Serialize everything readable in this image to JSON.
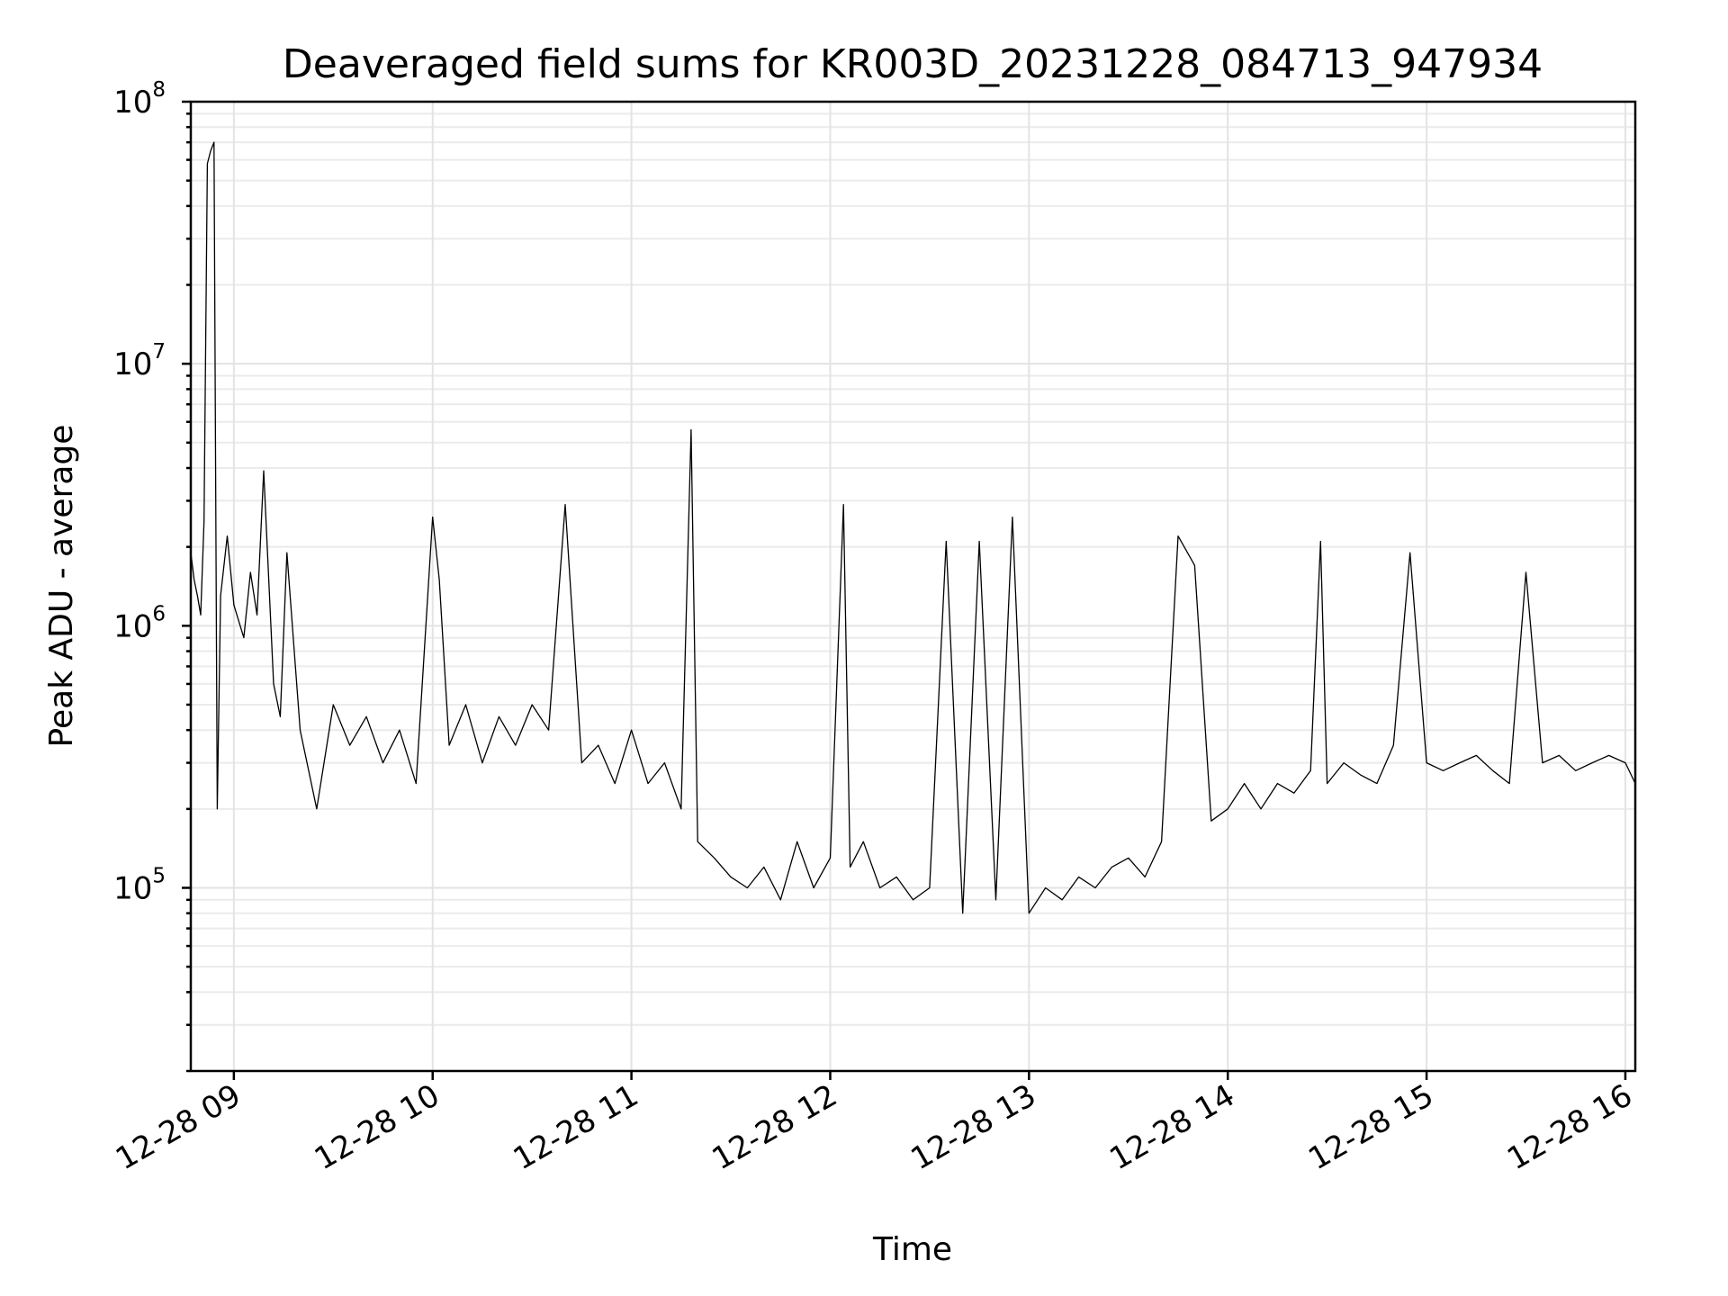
{
  "chart_data": {
    "type": "line",
    "title": "Deaveraged field sums for KR003D_20231228_084713_947934",
    "xlabel": "Time",
    "ylabel": "Peak ADU - average",
    "yscale": "log",
    "xlim": [
      "2023-12-28 08:47",
      "2023-12-28 16:03"
    ],
    "ylim": [
      20000,
      100000000
    ],
    "grid": true,
    "x_ticks": [
      {
        "value": "2023-12-28 09:00",
        "label": "12-28 09"
      },
      {
        "value": "2023-12-28 10:00",
        "label": "12-28 10"
      },
      {
        "value": "2023-12-28 11:00",
        "label": "12-28 11"
      },
      {
        "value": "2023-12-28 12:00",
        "label": "12-28 12"
      },
      {
        "value": "2023-12-28 13:00",
        "label": "12-28 13"
      },
      {
        "value": "2023-12-28 14:00",
        "label": "12-28 14"
      },
      {
        "value": "2023-12-28 15:00",
        "label": "12-28 15"
      },
      {
        "value": "2023-12-28 16:00",
        "label": "12-28 16"
      }
    ],
    "y_ticks": [
      {
        "value": 100000,
        "base": "10",
        "exp": "5"
      },
      {
        "value": 1000000,
        "base": "10",
        "exp": "6"
      },
      {
        "value": 10000000,
        "base": "10",
        "exp": "7"
      },
      {
        "value": 100000000,
        "base": "10",
        "exp": "8"
      }
    ],
    "series": [
      {
        "color": "#000000",
        "points": [
          [
            "2023-12-28 08:47",
            1900000
          ],
          [
            "2023-12-28 08:48",
            1500000
          ],
          [
            "2023-12-28 08:49",
            1300000
          ],
          [
            "2023-12-28 08:50",
            1100000
          ],
          [
            "2023-12-28 08:51",
            2500000
          ],
          [
            "2023-12-28 08:52",
            58000000
          ],
          [
            "2023-12-28 08:53",
            65000000
          ],
          [
            "2023-12-28 08:54",
            70000000
          ],
          [
            "2023-12-28 08:55",
            200000
          ],
          [
            "2023-12-28 08:56",
            1300000
          ],
          [
            "2023-12-28 08:58",
            2200000
          ],
          [
            "2023-12-28 09:00",
            1200000
          ],
          [
            "2023-12-28 09:03",
            900000
          ],
          [
            "2023-12-28 09:05",
            1600000
          ],
          [
            "2023-12-28 09:07",
            1100000
          ],
          [
            "2023-12-28 09:09",
            3900000
          ],
          [
            "2023-12-28 09:12",
            600000
          ],
          [
            "2023-12-28 09:14",
            450000
          ],
          [
            "2023-12-28 09:16",
            1900000
          ],
          [
            "2023-12-28 09:20",
            400000
          ],
          [
            "2023-12-28 09:25",
            200000
          ],
          [
            "2023-12-28 09:30",
            500000
          ],
          [
            "2023-12-28 09:35",
            350000
          ],
          [
            "2023-12-28 09:40",
            450000
          ],
          [
            "2023-12-28 09:45",
            300000
          ],
          [
            "2023-12-28 09:50",
            400000
          ],
          [
            "2023-12-28 09:55",
            250000
          ],
          [
            "2023-12-28 10:00",
            2600000
          ],
          [
            "2023-12-28 10:02",
            1500000
          ],
          [
            "2023-12-28 10:05",
            350000
          ],
          [
            "2023-12-28 10:10",
            500000
          ],
          [
            "2023-12-28 10:15",
            300000
          ],
          [
            "2023-12-28 10:20",
            450000
          ],
          [
            "2023-12-28 10:25",
            350000
          ],
          [
            "2023-12-28 10:30",
            500000
          ],
          [
            "2023-12-28 10:35",
            400000
          ],
          [
            "2023-12-28 10:40",
            2900000
          ],
          [
            "2023-12-28 10:45",
            300000
          ],
          [
            "2023-12-28 10:50",
            350000
          ],
          [
            "2023-12-28 10:55",
            250000
          ],
          [
            "2023-12-28 11:00",
            400000
          ],
          [
            "2023-12-28 11:05",
            250000
          ],
          [
            "2023-12-28 11:10",
            300000
          ],
          [
            "2023-12-28 11:15",
            200000
          ],
          [
            "2023-12-28 11:18",
            5600000
          ],
          [
            "2023-12-28 11:20",
            150000
          ],
          [
            "2023-12-28 11:25",
            130000
          ],
          [
            "2023-12-28 11:30",
            110000
          ],
          [
            "2023-12-28 11:35",
            100000
          ],
          [
            "2023-12-28 11:40",
            120000
          ],
          [
            "2023-12-28 11:45",
            90000
          ],
          [
            "2023-12-28 11:50",
            150000
          ],
          [
            "2023-12-28 11:55",
            100000
          ],
          [
            "2023-12-28 12:00",
            130000
          ],
          [
            "2023-12-28 12:04",
            2900000
          ],
          [
            "2023-12-28 12:06",
            120000
          ],
          [
            "2023-12-28 12:10",
            150000
          ],
          [
            "2023-12-28 12:15",
            100000
          ],
          [
            "2023-12-28 12:20",
            110000
          ],
          [
            "2023-12-28 12:25",
            90000
          ],
          [
            "2023-12-28 12:30",
            100000
          ],
          [
            "2023-12-28 12:35",
            2100000
          ],
          [
            "2023-12-28 12:40",
            80000
          ],
          [
            "2023-12-28 12:45",
            2100000
          ],
          [
            "2023-12-28 12:50",
            90000
          ],
          [
            "2023-12-28 12:55",
            2600000
          ],
          [
            "2023-12-28 13:00",
            80000
          ],
          [
            "2023-12-28 13:05",
            100000
          ],
          [
            "2023-12-28 13:10",
            90000
          ],
          [
            "2023-12-28 13:15",
            110000
          ],
          [
            "2023-12-28 13:20",
            100000
          ],
          [
            "2023-12-28 13:25",
            120000
          ],
          [
            "2023-12-28 13:30",
            130000
          ],
          [
            "2023-12-28 13:35",
            110000
          ],
          [
            "2023-12-28 13:40",
            150000
          ],
          [
            "2023-12-28 13:45",
            2200000
          ],
          [
            "2023-12-28 13:50",
            1700000
          ],
          [
            "2023-12-28 13:55",
            180000
          ],
          [
            "2023-12-28 14:00",
            200000
          ],
          [
            "2023-12-28 14:05",
            250000
          ],
          [
            "2023-12-28 14:10",
            200000
          ],
          [
            "2023-12-28 14:15",
            250000
          ],
          [
            "2023-12-28 14:20",
            230000
          ],
          [
            "2023-12-28 14:25",
            280000
          ],
          [
            "2023-12-28 14:28",
            2100000
          ],
          [
            "2023-12-28 14:30",
            250000
          ],
          [
            "2023-12-28 14:35",
            300000
          ],
          [
            "2023-12-28 14:40",
            270000
          ],
          [
            "2023-12-28 14:45",
            250000
          ],
          [
            "2023-12-28 14:50",
            350000
          ],
          [
            "2023-12-28 14:55",
            1900000
          ],
          [
            "2023-12-28 15:00",
            300000
          ],
          [
            "2023-12-28 15:05",
            280000
          ],
          [
            "2023-12-28 15:10",
            300000
          ],
          [
            "2023-12-28 15:15",
            320000
          ],
          [
            "2023-12-28 15:20",
            280000
          ],
          [
            "2023-12-28 15:25",
            250000
          ],
          [
            "2023-12-28 15:30",
            1600000
          ],
          [
            "2023-12-28 15:35",
            300000
          ],
          [
            "2023-12-28 15:40",
            320000
          ],
          [
            "2023-12-28 15:45",
            280000
          ],
          [
            "2023-12-28 15:50",
            300000
          ],
          [
            "2023-12-28 15:55",
            320000
          ],
          [
            "2023-12-28 16:00",
            300000
          ],
          [
            "2023-12-28 16:03",
            250000
          ]
        ]
      }
    ]
  }
}
